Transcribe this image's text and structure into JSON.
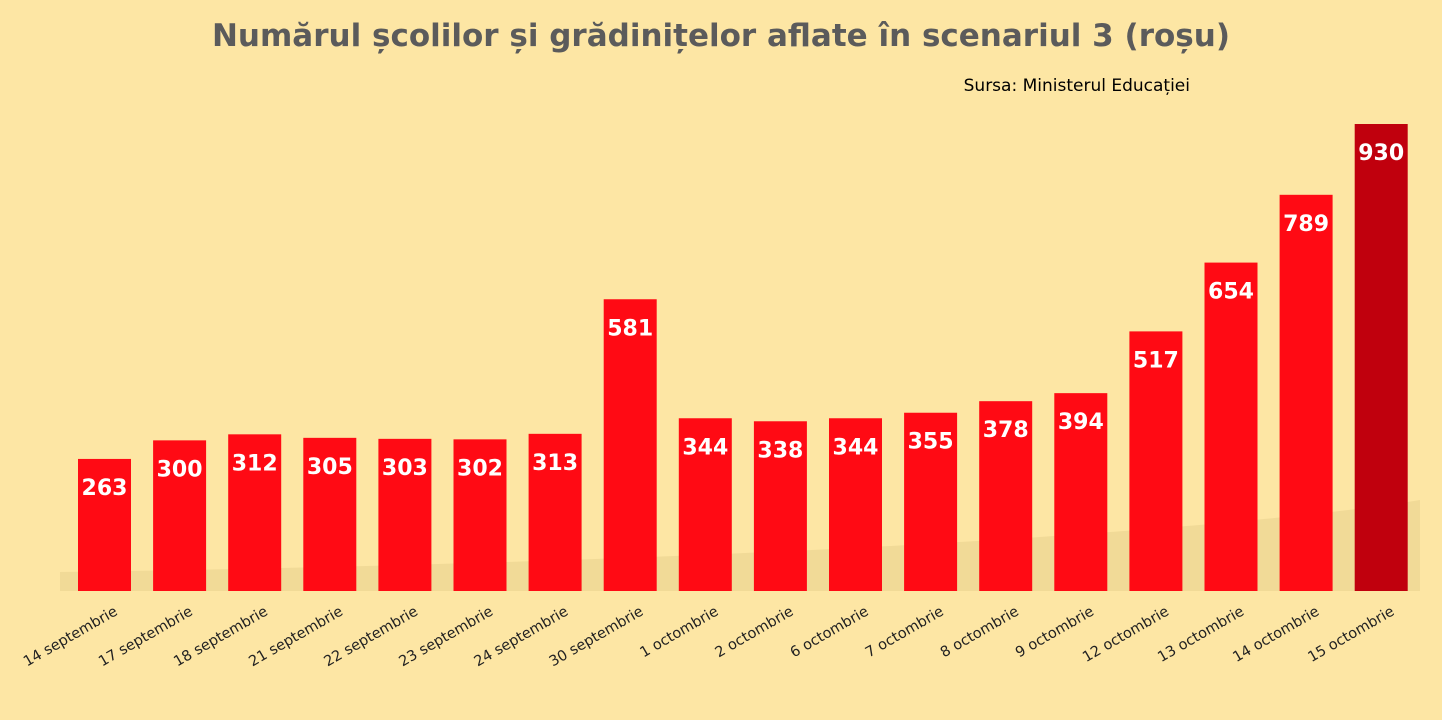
{
  "chart_data": {
    "type": "bar",
    "title": "Numărul școlilor și grădinițelor aflate în scenariul 3 (roșu)",
    "subtitle": "Sursa: Ministerul Educației",
    "categories": [
      "14 septembrie",
      "17 septembrie",
      "18 septembrie",
      "21 septembrie",
      "22 septembrie",
      "23 septembrie",
      "24 septembrie",
      "30 septembrie",
      "1 octombrie",
      "2 octombrie",
      "6 octombrie",
      "7 octombrie",
      "8 octombrie",
      "9 octombrie",
      "12 octombrie",
      "13 octombrie",
      "14 octombrie",
      "15 octombrie"
    ],
    "values": [
      263,
      300,
      312,
      305,
      303,
      302,
      313,
      581,
      344,
      338,
      344,
      355,
      378,
      394,
      517,
      654,
      789,
      930
    ],
    "ylim": [
      0,
      930
    ],
    "grid": false,
    "legend": "none",
    "colors": {
      "bar": "#ff0a14",
      "highlight_bar": "#c0000d",
      "background": "#fde6a4",
      "label": "#ffffff"
    },
    "highlight_index": 17
  }
}
